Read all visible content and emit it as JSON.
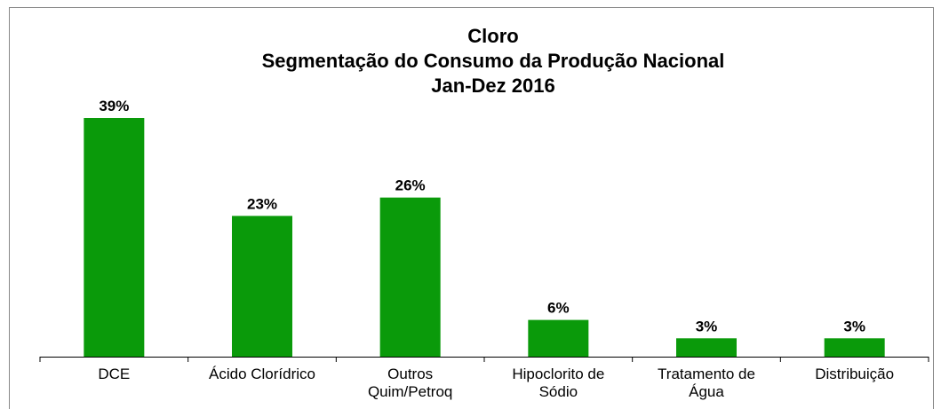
{
  "chart_data": {
    "type": "bar",
    "title": "Cloro",
    "subtitle": "Segmentação do Consumo da Produção Nacional",
    "period": "Jan-Dez 2016",
    "categories": [
      "DCE",
      "Ácido Clorídrico",
      "Outros Quim/Petroq",
      "Hipoclorito de Sódio",
      "Tratamento de Água",
      "Distribuição"
    ],
    "values": [
      39,
      23,
      26,
      6,
      3,
      3
    ],
    "value_labels": [
      "39%",
      "23%",
      "26%",
      "6%",
      "3%",
      "3%"
    ],
    "color": "#0a9a0a"
  }
}
